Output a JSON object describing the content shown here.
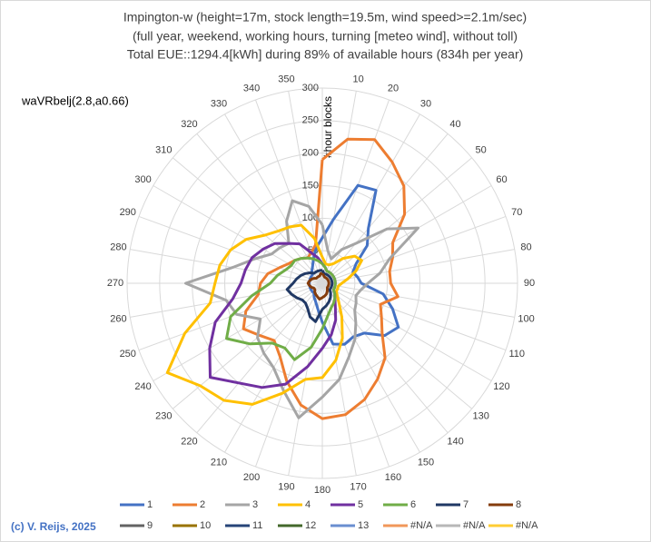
{
  "chart_data": {
    "type": "radar",
    "title": "Impington-w  (height=17m, stock length=19.5m, wind speed>=2.1m/sec)",
    "subtitle": "(full year, weekend,  working hours, turning [meteo wind], without toll)",
    "subtitle2": "Total EUE::1294.4[kWh] during 89% of available hours (834h per year)",
    "annotation": "waVRbelj(2.8,a0.66)",
    "axis_title": "#hour blocks",
    "footer": "(c) V. Reijs, 2025",
    "categories": [
      null,
      "10",
      "20",
      "30",
      "40",
      "50",
      "60",
      "70",
      "80",
      "90",
      "100",
      "110",
      "120",
      "130",
      "140",
      "150",
      "160",
      "170",
      "180",
      "190",
      "200",
      "210",
      "220",
      "230",
      "240",
      "250",
      "260",
      "270",
      "280",
      "290",
      "300",
      "310",
      "320",
      "330",
      "340",
      "350"
    ],
    "rlim": [
      0,
      300
    ],
    "rticks": [
      50,
      100,
      150,
      200,
      250,
      300
    ],
    "grid": true,
    "series": [
      {
        "name": "1",
        "color": "#4472c4",
        "values": [
          70,
          100,
          160,
          165,
          110,
          90,
          60,
          50,
          55,
          60,
          95,
          115,
          135,
          125,
          100,
          95,
          100,
          95,
          60,
          40,
          30,
          25,
          20,
          20,
          20,
          20,
          20,
          20,
          20,
          20,
          20,
          20,
          25,
          30,
          40,
          55
        ]
      },
      {
        "name": "2",
        "color": "#ed7d31",
        "values": [
          190,
          225,
          235,
          215,
          195,
          165,
          125,
          115,
          105,
          105,
          118,
          95,
          105,
          120,
          150,
          170,
          190,
          205,
          208,
          190,
          160,
          130,
          115,
          125,
          140,
          125,
          100,
          95,
          85,
          70,
          60,
          55,
          50,
          45,
          50,
          60
        ]
      },
      {
        "name": "3",
        "color": "#a5a5a5",
        "values": [
          90,
          50,
          40,
          60,
          80,
          130,
          170,
          110,
          90,
          70,
          60,
          55,
          60,
          65,
          80,
          100,
          120,
          150,
          175,
          210,
          175,
          150,
          140,
          130,
          110,
          140,
          150,
          210,
          140,
          110,
          90,
          85,
          80,
          110,
          135,
          120
        ]
      },
      {
        "name": "4",
        "color": "#ffc000",
        "values": [
          40,
          30,
          30,
          35,
          50,
          65,
          70,
          55,
          40,
          30,
          25,
          25,
          25,
          30,
          40,
          60,
          90,
          120,
          145,
          150,
          180,
          215,
          235,
          245,
          275,
          225,
          175,
          165,
          160,
          150,
          135,
          115,
          105,
          100,
          95,
          70
        ]
      },
      {
        "name": "5",
        "color": "#7030a0",
        "values": [
          30,
          25,
          20,
          20,
          20,
          20,
          20,
          20,
          20,
          20,
          20,
          20,
          20,
          25,
          30,
          40,
          60,
          80,
          100,
          130,
          165,
          185,
          200,
          225,
          200,
          175,
          140,
          125,
          120,
          115,
          105,
          95,
          80,
          70,
          50,
          40
        ]
      },
      {
        "name": "6",
        "color": "#70ad47",
        "values": [
          30,
          25,
          20,
          20,
          20,
          20,
          20,
          20,
          20,
          20,
          20,
          20,
          20,
          25,
          30,
          35,
          40,
          50,
          70,
          100,
          125,
          115,
          120,
          145,
          170,
          150,
          110,
          80,
          70,
          60,
          55,
          55,
          50,
          45,
          40,
          35
        ]
      },
      {
        "name": "7",
        "color": "#203864",
        "values": [
          20,
          15,
          15,
          15,
          15,
          15,
          15,
          15,
          15,
          15,
          15,
          15,
          15,
          15,
          20,
          25,
          30,
          35,
          40,
          60,
          55,
          45,
          40,
          40,
          45,
          50,
          55,
          45,
          40,
          35,
          30,
          25,
          20,
          20,
          20,
          20
        ]
      },
      {
        "name": "8",
        "color": "#843c0c",
        "values": [
          15,
          12,
          10,
          10,
          10,
          10,
          10,
          10,
          10,
          10,
          10,
          10,
          10,
          10,
          12,
          15,
          18,
          20,
          22,
          25,
          22,
          20,
          18,
          15,
          15,
          18,
          20,
          22,
          20,
          18,
          15,
          12,
          12,
          12,
          12,
          15
        ]
      },
      {
        "name": "9",
        "color": "#636363",
        "values": [
          null,
          null,
          null,
          null,
          null,
          null,
          null,
          null,
          null,
          null,
          null,
          null,
          null,
          null,
          null,
          null,
          null,
          null,
          null,
          null,
          null,
          null,
          null,
          null,
          null,
          null,
          null,
          null,
          null,
          null,
          null,
          null,
          null,
          null,
          null,
          null
        ]
      },
      {
        "name": "10",
        "color": "#997300",
        "values": [
          null,
          null,
          null,
          null,
          null,
          null,
          null,
          null,
          null,
          null,
          null,
          null,
          null,
          null,
          null,
          null,
          null,
          null,
          null,
          null,
          null,
          null,
          null,
          null,
          null,
          null,
          null,
          null,
          null,
          null,
          null,
          null,
          null,
          null,
          null,
          null
        ]
      },
      {
        "name": "11",
        "color": "#264478",
        "values": [
          null,
          null,
          null,
          null,
          null,
          null,
          null,
          null,
          null,
          null,
          null,
          null,
          null,
          null,
          null,
          null,
          null,
          null,
          null,
          null,
          null,
          null,
          null,
          null,
          null,
          null,
          null,
          null,
          null,
          null,
          null,
          null,
          null,
          null,
          null,
          null
        ]
      },
      {
        "name": "12",
        "color": "#43682b",
        "values": [
          null,
          null,
          null,
          null,
          null,
          null,
          null,
          null,
          null,
          null,
          null,
          null,
          null,
          null,
          null,
          null,
          null,
          null,
          null,
          null,
          null,
          null,
          null,
          null,
          null,
          null,
          null,
          null,
          null,
          null,
          null,
          null,
          null,
          null,
          null,
          null
        ]
      },
      {
        "name": "13",
        "color": "#698ed0",
        "values": [
          null,
          null,
          null,
          null,
          null,
          null,
          null,
          null,
          null,
          null,
          null,
          null,
          null,
          null,
          null,
          null,
          null,
          null,
          null,
          null,
          null,
          null,
          null,
          null,
          null,
          null,
          null,
          null,
          null,
          null,
          null,
          null,
          null,
          null,
          null,
          null
        ]
      },
      {
        "name": "#N/A",
        "color": "#f1975a",
        "values": [
          null,
          null,
          null,
          null,
          null,
          null,
          null,
          null,
          null,
          null,
          null,
          null,
          null,
          null,
          null,
          null,
          null,
          null,
          null,
          null,
          null,
          null,
          null,
          null,
          null,
          null,
          null,
          null,
          null,
          null,
          null,
          null,
          null,
          null,
          null,
          null
        ]
      },
      {
        "name": "#N/A",
        "color": "#b7b7b7",
        "values": [
          null,
          null,
          null,
          null,
          null,
          null,
          null,
          null,
          null,
          null,
          null,
          null,
          null,
          null,
          null,
          null,
          null,
          null,
          null,
          null,
          null,
          null,
          null,
          null,
          null,
          null,
          null,
          null,
          null,
          null,
          null,
          null,
          null,
          null,
          null,
          null
        ]
      },
      {
        "name": "#N/A",
        "color": "#ffcd33",
        "values": [
          null,
          null,
          null,
          null,
          null,
          null,
          null,
          null,
          null,
          null,
          null,
          null,
          null,
          null,
          null,
          null,
          null,
          null,
          null,
          null,
          null,
          null,
          null,
          null,
          null,
          null,
          null,
          null,
          null,
          null,
          null,
          null,
          null,
          null,
          null,
          null
        ]
      }
    ]
  }
}
